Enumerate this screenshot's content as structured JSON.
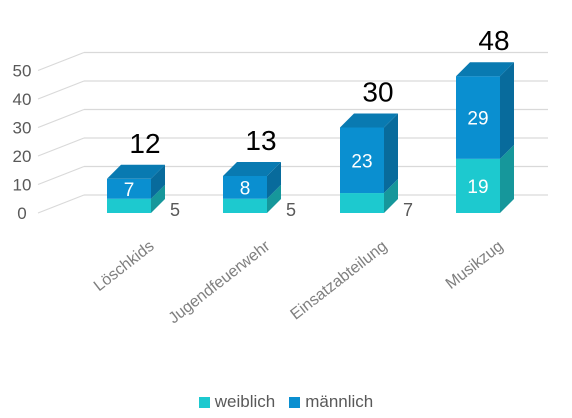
{
  "chart_data": {
    "type": "bar",
    "stacked": true,
    "style": "3d-column",
    "categories": [
      "Löschkids",
      "Jugendfeuerwehr",
      "Einsatzabteilung",
      "Musikzug"
    ],
    "series": [
      {
        "name": "weiblich",
        "values": [
          5,
          5,
          7,
          19
        ],
        "color": "#1dc9cf"
      },
      {
        "name": "männlich",
        "values": [
          7,
          8,
          23,
          29
        ],
        "color": "#0a8fd0"
      }
    ],
    "totals": [
      12,
      13,
      30,
      48
    ],
    "yticks": [
      0,
      10,
      20,
      30,
      40,
      50
    ],
    "ylim": [
      0,
      50
    ],
    "grid": true,
    "legend_position": "bottom"
  },
  "legend": {
    "items": [
      {
        "label": "weiblich",
        "color": "#1dc9cf"
      },
      {
        "label": "männlich",
        "color": "#0a8fd0"
      }
    ]
  }
}
